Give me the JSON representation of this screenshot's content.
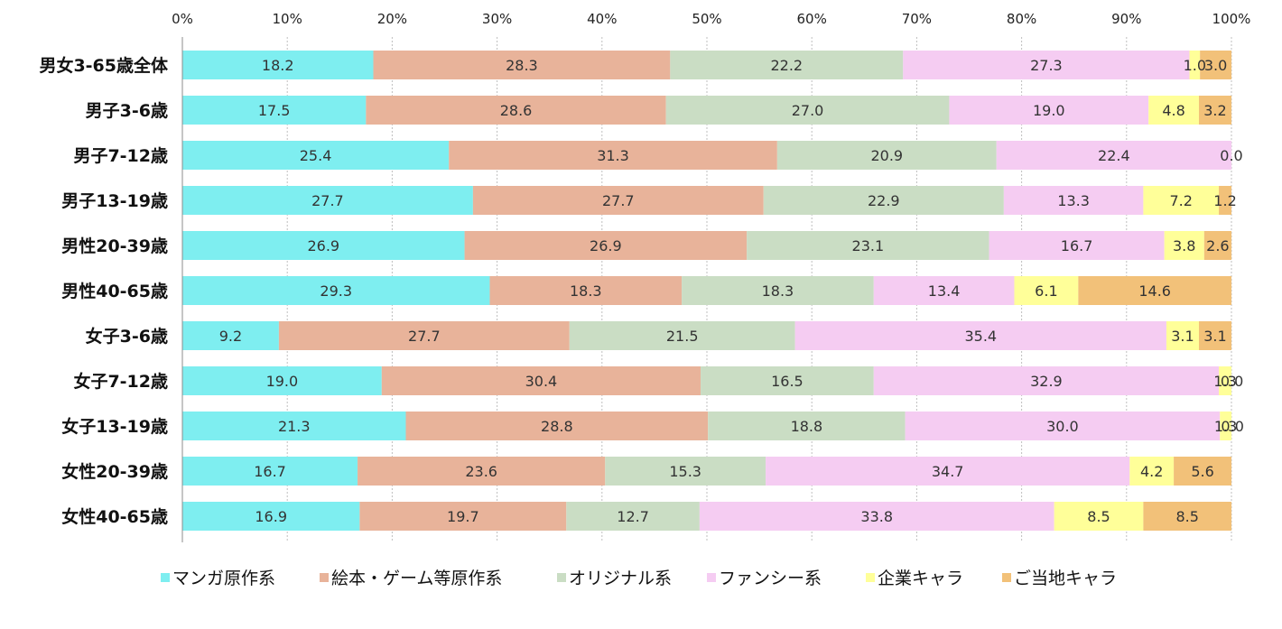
{
  "chart_data": {
    "type": "bar",
    "orientation": "horizontal",
    "stacked": "percent",
    "xlim": [
      0,
      100
    ],
    "x_ticks": [
      "0%",
      "10%",
      "20%",
      "30%",
      "40%",
      "50%",
      "60%",
      "70%",
      "80%",
      "90%",
      "100%"
    ],
    "grid": true,
    "legend_position": "bottom",
    "categories": [
      "男女3-65歳全体",
      "男子3-6歳",
      "男子7-12歳",
      "男子13-19歳",
      "男性20-39歳",
      "男性40-65歳",
      "女子3-6歳",
      "女子7-12歳",
      "女子13-19歳",
      "女性20-39歳",
      "女性40-65歳"
    ],
    "series": [
      {
        "name": "マンガ原作系",
        "color": "#7EEEF0",
        "values": [
          18.2,
          17.5,
          25.4,
          27.7,
          26.9,
          29.3,
          9.2,
          19.0,
          21.3,
          16.7,
          16.9
        ]
      },
      {
        "name": "絵本・ゲーム等原作系",
        "color": "#E8B39A",
        "values": [
          28.3,
          28.6,
          31.3,
          27.7,
          26.9,
          18.3,
          27.7,
          30.4,
          28.8,
          23.6,
          19.7
        ]
      },
      {
        "name": "オリジナル系",
        "color": "#CADDC4",
        "values": [
          22.2,
          27.0,
          20.9,
          22.9,
          23.1,
          18.3,
          21.5,
          16.5,
          18.8,
          15.3,
          12.7
        ]
      },
      {
        "name": "ファンシー系",
        "color": "#F5CCF2",
        "values": [
          27.3,
          19.0,
          22.4,
          13.3,
          16.7,
          13.4,
          35.4,
          32.9,
          30.0,
          34.7,
          33.8
        ]
      },
      {
        "name": "企業キャラ",
        "color": "#FFFF99",
        "values": [
          1.0,
          4.8,
          0.0,
          7.2,
          3.8,
          6.1,
          3.1,
          1.3,
          1.3,
          4.2,
          8.5
        ]
      },
      {
        "name": "ご当地キャラ",
        "color": "#F2C179",
        "values": [
          3.0,
          3.2,
          0.0,
          1.2,
          2.6,
          14.6,
          3.1,
          0.0,
          0.0,
          5.6,
          8.5
        ]
      }
    ],
    "data_labels": [
      [
        "18.2",
        "28.3",
        "22.2",
        "27.3",
        "1.0",
        "3.0"
      ],
      [
        "17.5",
        "28.6",
        "27.0",
        "19.0",
        "4.8",
        "3.2"
      ],
      [
        "25.4",
        "31.3",
        "20.9",
        "22.4",
        "",
        "0.0"
      ],
      [
        "27.7",
        "27.7",
        "22.9",
        "13.3",
        "7.2",
        "1.2"
      ],
      [
        "26.9",
        "26.9",
        "23.1",
        "16.7",
        "3.8",
        "2.6"
      ],
      [
        "29.3",
        "18.3",
        "18.3",
        "13.4",
        "6.1",
        "14.6"
      ],
      [
        "9.2",
        "27.7",
        "21.5",
        "35.4",
        "3.1",
        "3.1"
      ],
      [
        "19.0",
        "30.4",
        "16.5",
        "32.9",
        "1.3",
        "0.0"
      ],
      [
        "21.3",
        "28.8",
        "18.8",
        "30.0",
        "1.3",
        "0.0"
      ],
      [
        "16.7",
        "23.6",
        "15.3",
        "34.7",
        "4.2",
        "5.6"
      ],
      [
        "16.9",
        "19.7",
        "12.7",
        "33.8",
        "8.5",
        "8.5"
      ]
    ]
  }
}
